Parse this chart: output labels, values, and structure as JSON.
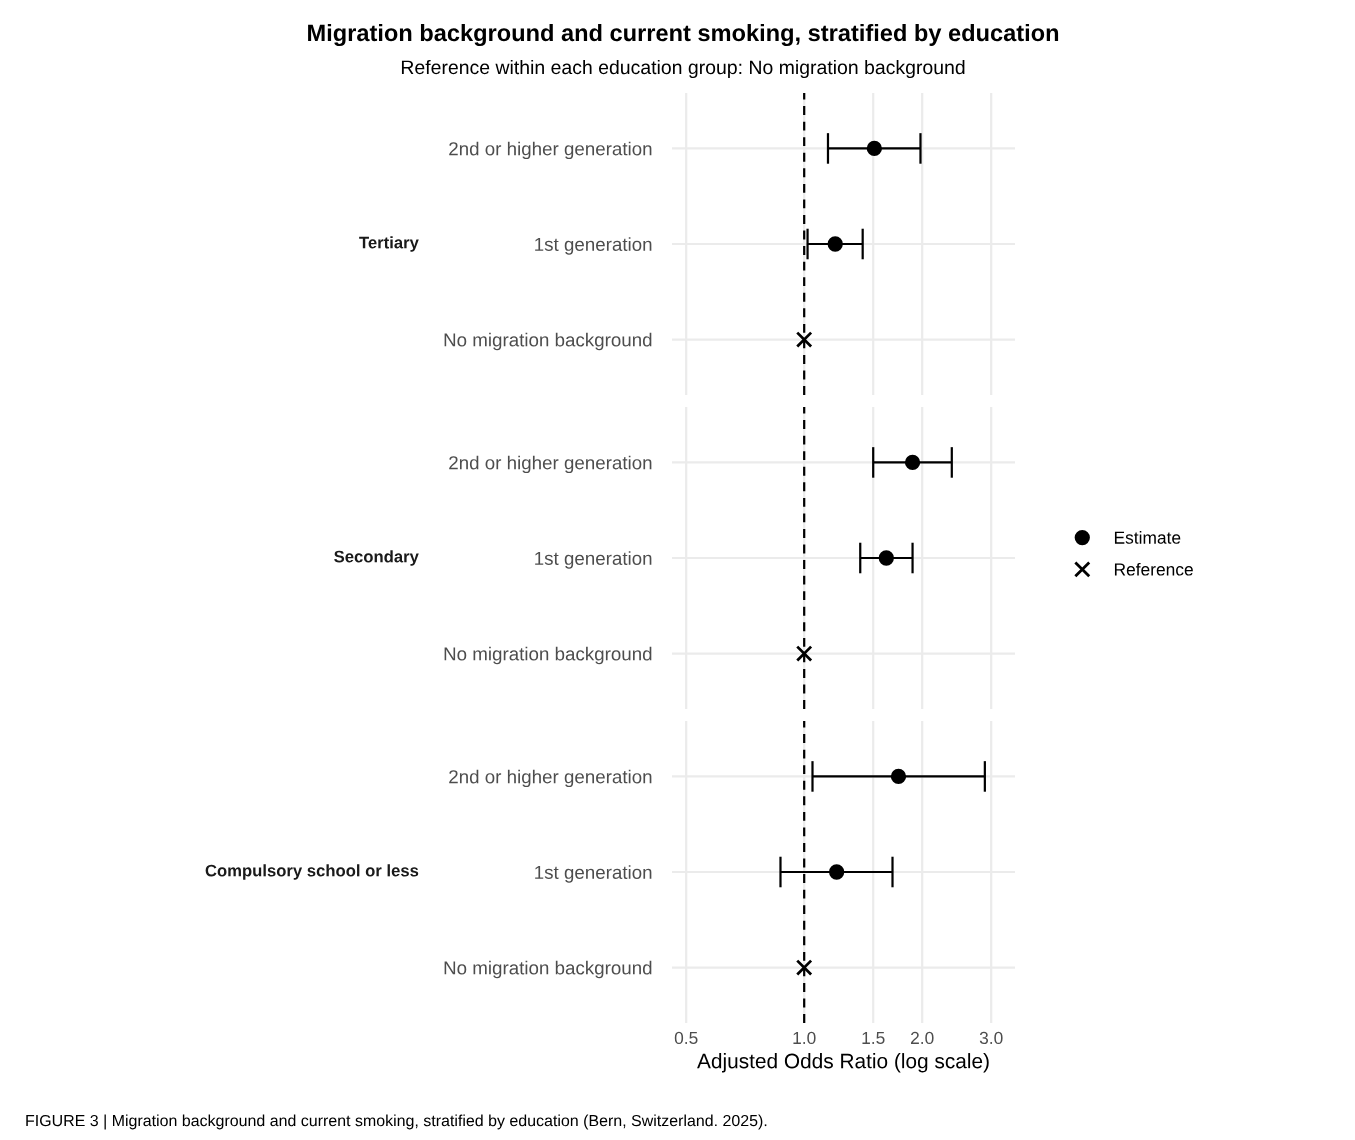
{
  "chart_data": [
    {
      "type": "scatter",
      "orientation": "horizontal",
      "title": "Migration background and current smoking, stratified by education",
      "subtitle": "Reference within each education group: No migration background",
      "ylabel": "Tertiary",
      "categories": [
        "2nd or higher generation",
        "1st generation",
        "No migration background"
      ],
      "log": "x",
      "xlim": [
        0.46,
        3.45
      ],
      "grid": true,
      "tick_labels": "y",
      "legend": "right",
      "ref_lines": [
        {
          "axis": "x",
          "value": 1,
          "color": "#000000",
          "line_style": "dashed"
        }
      ],
      "series": [
        {
          "name": "Estimate",
          "color": "#000000",
          "marker": "circle",
          "values": [
            1.51,
            1.2,
            null
          ],
          "errors": [
            [
              1.15,
              1.98
            ],
            [
              1.02,
              1.41
            ],
            null
          ]
        },
        {
          "name": "Reference",
          "color": "#000000",
          "marker": "cross",
          "values": [
            null,
            null,
            1
          ]
        }
      ]
    },
    {
      "type": "scatter",
      "orientation": "horizontal",
      "ylabel": "Secondary",
      "categories": [
        "2nd or higher generation",
        "1st generation",
        "No migration background"
      ],
      "log": "x",
      "xlim": [
        0.46,
        3.45
      ],
      "grid": true,
      "tick_labels": "y",
      "ref_lines": [
        {
          "axis": "x",
          "value": 1,
          "color": "#000000",
          "line_style": "dashed"
        }
      ],
      "series": [
        {
          "name": "Estimate",
          "color": "#000000",
          "marker": "circle",
          "values": [
            1.89,
            1.62,
            null
          ],
          "errors": [
            [
              1.5,
              2.38
            ],
            [
              1.39,
              1.89
            ],
            null
          ]
        },
        {
          "name": "Reference",
          "color": "#000000",
          "marker": "cross",
          "values": [
            null,
            null,
            1
          ]
        }
      ]
    },
    {
      "type": "scatter",
      "orientation": "horizontal",
      "ylabel": "Compulsory school or less",
      "xlabel": "Adjusted Odds Ratio (log scale)",
      "categories": [
        "2nd or higher generation",
        "1st generation",
        "No migration background"
      ],
      "log": "x",
      "xlim": [
        0.46,
        3.45
      ],
      "xticks": [
        0.5,
        {
          "value": 1,
          "label": "1.0"
        },
        1.5,
        {
          "value": 2,
          "label": "2.0"
        },
        {
          "value": 3,
          "label": "3.0"
        }
      ],
      "grid": true,
      "ref_lines": [
        {
          "axis": "x",
          "value": 1,
          "color": "#000000",
          "line_style": "dashed"
        }
      ],
      "annotations": [
        "FIGURE 3 | Migration background and current smoking, stratified by education (Bern, Switzerland. 2025)."
      ],
      "series": [
        {
          "name": "Estimate",
          "color": "#000000",
          "marker": "circle",
          "values": [
            1.74,
            1.21,
            null
          ],
          "errors": [
            [
              1.05,
              2.89
            ],
            [
              0.87,
              1.68
            ],
            null
          ]
        },
        {
          "name": "Reference",
          "color": "#000000",
          "marker": "cross",
          "values": [
            null,
            null,
            1
          ]
        }
      ]
    }
  ]
}
